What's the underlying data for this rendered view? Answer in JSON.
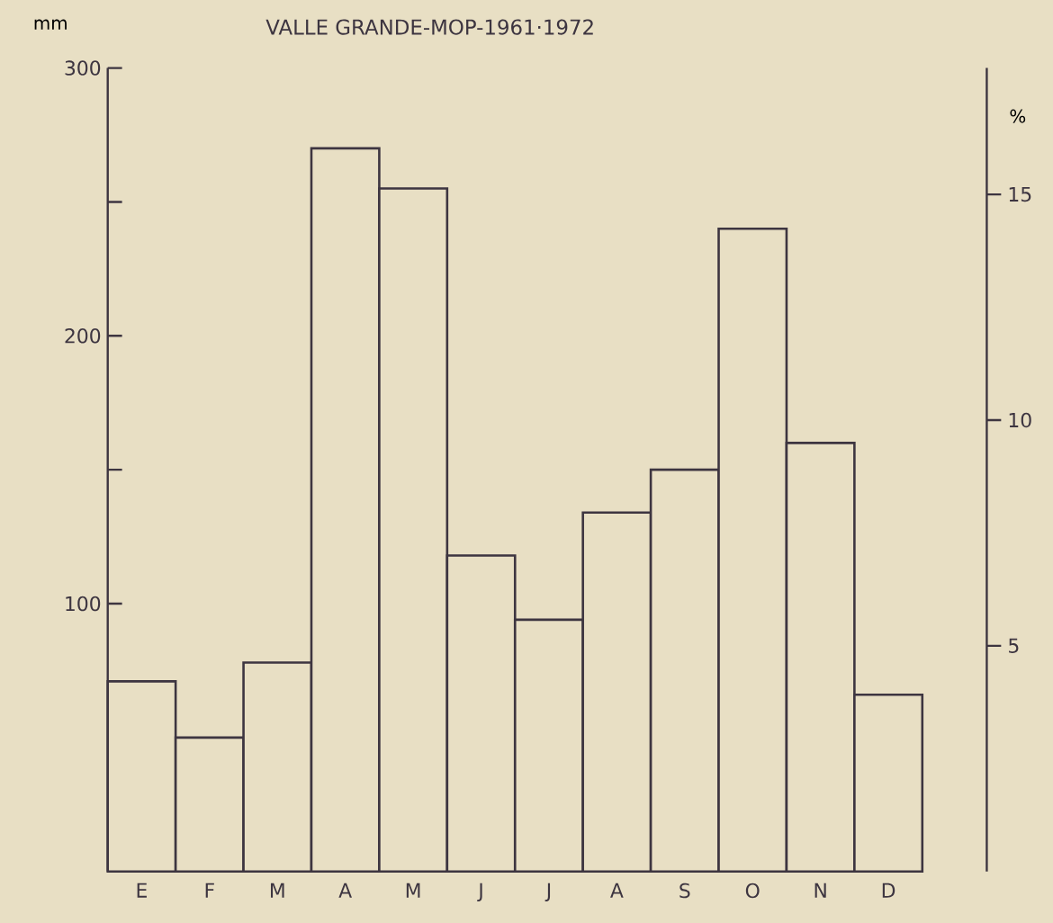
{
  "chart_data": {
    "type": "bar",
    "title": "VALLE GRANDE-MOP-1961·1972",
    "ylabel": "mm",
    "y2label": "%",
    "categories": [
      "E",
      "F",
      "M",
      "A",
      "M",
      "J",
      "J",
      "A",
      "S",
      "O",
      "N",
      "D"
    ],
    "values": [
      71,
      50,
      78,
      270,
      255,
      118,
      94,
      134,
      150,
      240,
      160,
      66
    ],
    "color": "#3d3540",
    "ylim": [
      0,
      300
    ],
    "yticks": [
      {
        "value": 50,
        "label": null
      },
      100,
      {
        "value": 150,
        "label": null
      },
      200,
      {
        "value": 250,
        "label": null
      },
      300
    ],
    "y2lim": [
      0,
      17.8
    ],
    "y2ticks": [
      5,
      10,
      15
    ]
  }
}
